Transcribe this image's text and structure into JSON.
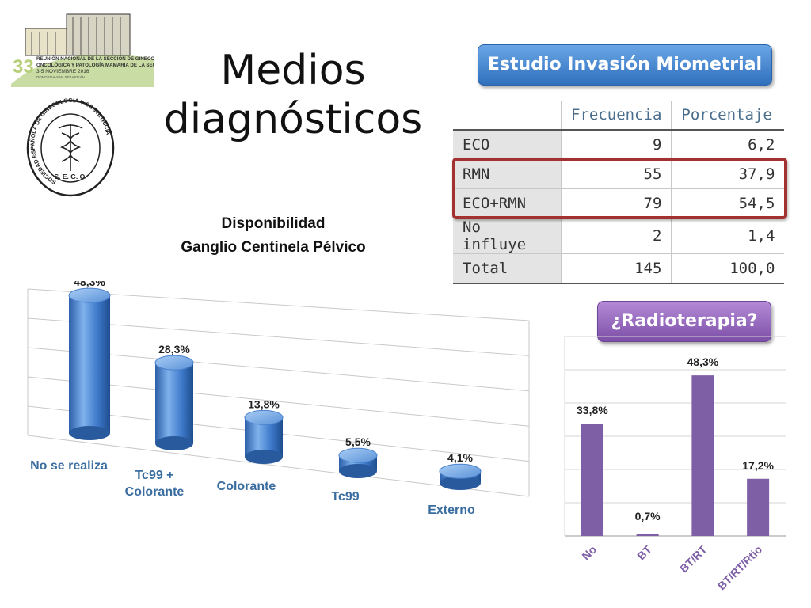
{
  "logo": {
    "number": "33",
    "line1": "REUNIÓN NACIONAL DE LA SECCIÓN DE GINECOLOGÍA",
    "line2": "ONCOLÓGICA Y PATOLOGÍA MAMARIA DE LA SEGO",
    "dates": "3-5 NOVIEMBRE 2016",
    "city": "DONOSTIA-SAN SEBASTIÁN"
  },
  "seal": {
    "ring_text": "SOCIEDAD ESPAÑOLA DE GINECOLOGÍA Y OBSTETRICIA",
    "abbrev": "S. E. G. O."
  },
  "title": "Medios diagnósticos",
  "pill_top": "Estudio Invasión Miometrial",
  "pill_bottom": "¿Radioterapia?",
  "table": {
    "headers": [
      "",
      "Frecuencia",
      "Porcentaje"
    ],
    "rows": [
      {
        "label": "ECO",
        "freq": "9",
        "pct": "6,2"
      },
      {
        "label": "RMN",
        "freq": "55",
        "pct": "37,9"
      },
      {
        "label": "ECO+RMN",
        "freq": "79",
        "pct": "54,5"
      },
      {
        "label": "No influye",
        "freq": "2",
        "pct": "1,4"
      },
      {
        "label": "Total",
        "freq": "145",
        "pct": "100,0"
      }
    ],
    "highlighted_rows": [
      "RMN",
      "ECO+RMN"
    ],
    "highlight_color": "#a3312f"
  },
  "chart_data": [
    {
      "type": "bar",
      "style": "3d-cylinder",
      "title": "Disponibilidad\nGanglio Centinela Pélvico",
      "title_lines": [
        "Disponibilidad",
        "Ganglio Centinela Pélvico"
      ],
      "categories": [
        "No se realiza",
        "Tc99 + Colorante",
        "Colorante",
        "Tc99",
        "Externo"
      ],
      "category_lines": [
        [
          "No se realiza"
        ],
        [
          "Tc99 +",
          "Colorante"
        ],
        [
          "Colorante"
        ],
        [
          "Tc99"
        ],
        [
          "Externo"
        ]
      ],
      "values": [
        48.3,
        28.3,
        13.8,
        5.5,
        4.1
      ],
      "data_labels": [
        "48,3%",
        "28,3%",
        "13,8%",
        "5,5%",
        "4,1%"
      ],
      "ylim": [
        0,
        50
      ],
      "grid": true,
      "color": "#3a78c8",
      "label_color": "#3a6da0"
    },
    {
      "type": "bar",
      "title": "",
      "categories": [
        "No",
        "BT",
        "BT/RT",
        "BT/RT/Rtio"
      ],
      "values": [
        33.8,
        0.7,
        48.3,
        17.2
      ],
      "data_labels": [
        "33,8%",
        "0,7%",
        "48,3%",
        "17,2%"
      ],
      "ylim": [
        0,
        60
      ],
      "grid": true,
      "color": "#7e5fa6",
      "label_color": "#7e5fa6"
    }
  ]
}
